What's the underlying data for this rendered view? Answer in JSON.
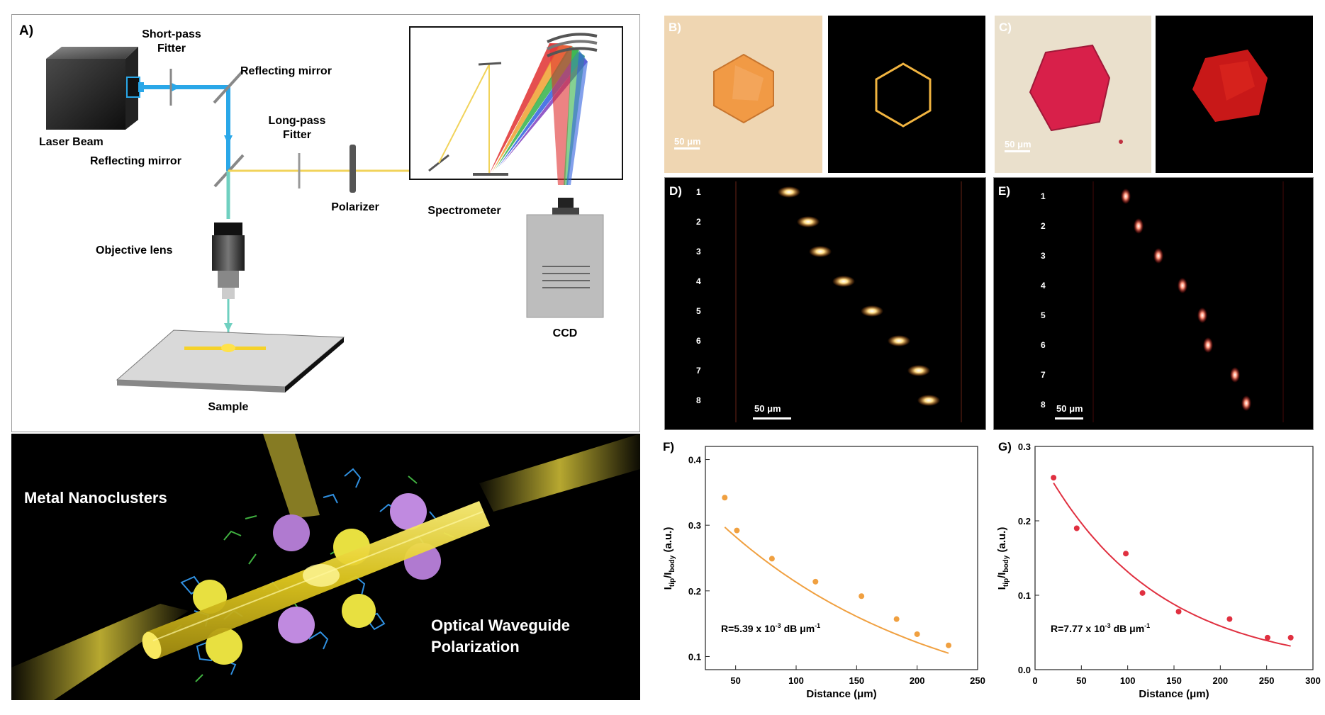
{
  "panel_a": {
    "label": "A)",
    "laser": "Laser Beam",
    "short_pass_1": "Short-pass",
    "short_pass_2": "Fitter",
    "mirror_top": "Reflecting mirror",
    "long_pass_1": "Long-pass",
    "long_pass_2": "Fitter",
    "mirror_mid": "Reflecting mirror",
    "polarizer": "Polarizer",
    "spectrometer": "Spectrometer",
    "objective": "Objective lens",
    "ccd": "CCD",
    "sample": "Sample"
  },
  "nano": {
    "metal": "Metal Nanoclusters",
    "wave1": "Optical Waveguide",
    "wave2": "Polarization"
  },
  "panel_b": {
    "label": "B)",
    "scale": "50 μm"
  },
  "panel_c": {
    "label": "C)",
    "scale": "50 μm"
  },
  "panel_d": {
    "label": "D)",
    "scale": "50 μm",
    "rows": [
      "1",
      "2",
      "3",
      "4",
      "5",
      "6",
      "7",
      "8"
    ]
  },
  "panel_e": {
    "label": "E)",
    "scale": "50 μm",
    "rows": [
      "1",
      "2",
      "3",
      "4",
      "5",
      "6",
      "7",
      "8"
    ]
  },
  "colors": {
    "laser_blue": "#2aa7e8",
    "emission_yellow": "#f1d35a",
    "orange_fit": "#f0a040",
    "red_fit": "#e03040"
  },
  "chart_data": [
    {
      "panel": "F)",
      "type": "scatter",
      "xlabel": "Distance (μm)",
      "ylabel_main": "I",
      "ylabel_sub1": "tip",
      "ylabel_mid": "/I",
      "ylabel_sub2": "body",
      "ylabel_unit": " (a.u.)",
      "xlim": [
        25,
        250
      ],
      "ylim": [
        0.08,
        0.42
      ],
      "xticks": [
        "50",
        "100",
        "150",
        "200",
        "250"
      ],
      "yticks": [
        "0.1",
        "0.2",
        "0.3",
        "0.4"
      ],
      "annotation": "R=5.39 x 10",
      "annotation_exp": "-3",
      "annotation_unit": " dB μm",
      "annotation_unit_exp": "-1",
      "color": "#f0a040",
      "points": [
        [
          41,
          0.342
        ],
        [
          51,
          0.292
        ],
        [
          80,
          0.249
        ],
        [
          116,
          0.214
        ],
        [
          154,
          0.192
        ],
        [
          183,
          0.157
        ],
        [
          200,
          0.134
        ],
        [
          226,
          0.117
        ]
      ],
      "fit": {
        "a": 0.374,
        "b": 0.00562,
        "x0": 41,
        "x1": 226
      }
    },
    {
      "panel": "G)",
      "type": "scatter",
      "xlabel": "Distance (μm)",
      "ylabel_main": "I",
      "ylabel_sub1": "tip",
      "ylabel_mid": "/I",
      "ylabel_sub2": "body",
      "ylabel_unit": " (a.u.)",
      "xlim": [
        0,
        300
      ],
      "ylim": [
        0,
        0.3
      ],
      "xticks": [
        "0",
        "50",
        "100",
        "150",
        "200",
        "250",
        "300"
      ],
      "yticks": [
        "0.0",
        "0.1",
        "0.2",
        "0.3"
      ],
      "annotation": "R=7.77 x 10",
      "annotation_exp": "-3",
      "annotation_unit": " dB μm",
      "annotation_unit_exp": "-1",
      "color": "#e03040",
      "points": [
        [
          20,
          0.258
        ],
        [
          45,
          0.19
        ],
        [
          98,
          0.156
        ],
        [
          116,
          0.103
        ],
        [
          155,
          0.078
        ],
        [
          210,
          0.068
        ],
        [
          251,
          0.043
        ],
        [
          276,
          0.043
        ]
      ],
      "fit": {
        "a": 0.295,
        "b": 0.00808,
        "x0": 20,
        "x1": 276
      }
    }
  ]
}
